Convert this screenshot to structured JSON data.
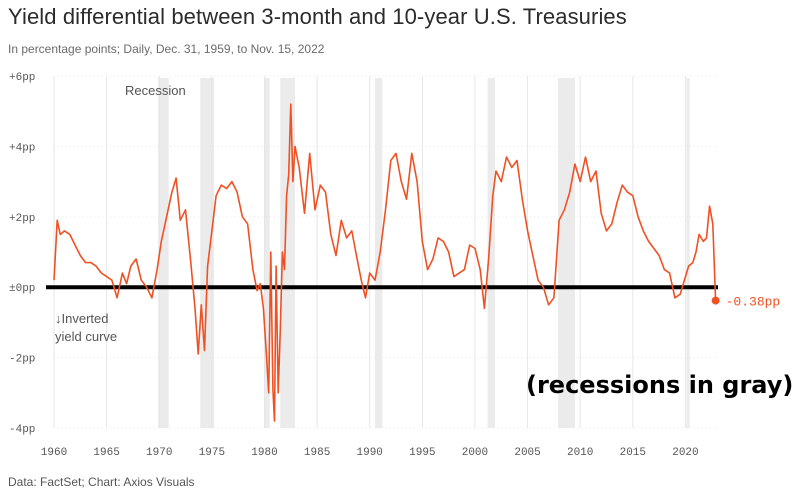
{
  "title": "Yield differential between 3-month and 10-year U.S. Treasuries",
  "subtitle": "In percentage points; Daily, Dec. 31, 1959, to Nov. 15, 2022",
  "source": "Data: FactSet; Chart: Axios Visuals",
  "recession_label": "Recession",
  "inverted_label_line1": "↓Inverted",
  "inverted_label_line2": "yield curve",
  "annotation": "(recessions in gray)",
  "end_value_label": "-0.38pp",
  "colors": {
    "line": "#ef5124",
    "recession": "#ebebeb",
    "zero_line": "#000000",
    "grid": "#e6e6e6"
  },
  "chart_data": {
    "type": "line",
    "title": "Yield differential between 3-month and 10-year U.S. Treasuries",
    "ylabel": "",
    "xlabel": "",
    "xlim": [
      1960,
      2023
    ],
    "ylim": [
      -4,
      6
    ],
    "y_ticks": [
      6,
      4,
      2,
      0,
      -2,
      -4
    ],
    "y_tick_labels": [
      "+6pp",
      "+4pp",
      "+2pp",
      "±0pp",
      "-2pp",
      "-4pp"
    ],
    "x_ticks": [
      1960,
      1965,
      1970,
      1975,
      1980,
      1985,
      1990,
      1995,
      2000,
      2005,
      2010,
      2015,
      2020
    ],
    "x_tick_labels": [
      "1960",
      "1965",
      "1970",
      "1975",
      "1980",
      "1985",
      "1990",
      "1995",
      "2000",
      "2005",
      "2010",
      "2015",
      "2020"
    ],
    "grid": "vertical",
    "recessions": [
      [
        1969.9,
        1970.9
      ],
      [
        1973.9,
        1975.2
      ],
      [
        1980.0,
        1980.5
      ],
      [
        1981.5,
        1982.9
      ],
      [
        1990.5,
        1991.2
      ],
      [
        2001.2,
        2001.9
      ],
      [
        2007.9,
        2009.5
      ],
      [
        2020.1,
        2020.4
      ]
    ],
    "series": [
      {
        "x": [
          1960.0,
          1960.3,
          1960.6,
          1961.0,
          1961.5,
          1962.0,
          1962.5,
          1963.0,
          1963.5,
          1964.0,
          1964.5,
          1965.0,
          1965.5,
          1966.0,
          1966.5,
          1966.9,
          1967.3,
          1967.8,
          1968.3,
          1968.8,
          1969.3,
          1969.8,
          1970.2,
          1970.7,
          1971.2,
          1971.6,
          1972.0,
          1972.5,
          1973.0,
          1973.4,
          1973.7,
          1974.0,
          1974.3,
          1974.6,
          1975.0,
          1975.4,
          1975.9,
          1976.4,
          1976.9,
          1977.4,
          1977.9,
          1978.4,
          1978.9,
          1979.3,
          1979.6,
          1979.9,
          1980.2,
          1980.4,
          1980.6,
          1980.8,
          1980.95,
          1981.1,
          1981.3,
          1981.5,
          1981.7,
          1981.9,
          1982.1,
          1982.3,
          1982.5,
          1982.7,
          1982.9,
          1983.3,
          1983.8,
          1984.3,
          1984.8,
          1985.3,
          1985.8,
          1986.3,
          1986.8,
          1987.3,
          1987.8,
          1988.3,
          1988.8,
          1989.2,
          1989.6,
          1990.0,
          1990.5,
          1991.0,
          1991.5,
          1992.0,
          1992.5,
          1993.0,
          1993.5,
          1994.0,
          1994.5,
          1995.0,
          1995.5,
          1996.0,
          1996.5,
          1997.0,
          1997.5,
          1998.0,
          1998.5,
          1999.0,
          1999.5,
          2000.0,
          2000.5,
          2000.9,
          2001.3,
          2001.7,
          2002.0,
          2002.5,
          2003.0,
          2003.5,
          2004.0,
          2004.5,
          2005.0,
          2005.5,
          2006.0,
          2006.5,
          2007.0,
          2007.5,
          2008.0,
          2008.5,
          2009.0,
          2009.5,
          2010.0,
          2010.5,
          2011.0,
          2011.5,
          2012.0,
          2012.5,
          2013.0,
          2013.5,
          2014.0,
          2014.5,
          2015.0,
          2015.5,
          2016.0,
          2016.5,
          2017.0,
          2017.5,
          2018.0,
          2018.5,
          2019.0,
          2019.5,
          2019.9,
          2020.3,
          2020.7,
          2021.0,
          2021.3,
          2021.7,
          2022.0,
          2022.3,
          2022.6,
          2022.87
        ],
        "values": [
          0.2,
          1.9,
          1.5,
          1.6,
          1.5,
          1.2,
          0.9,
          0.7,
          0.7,
          0.6,
          0.4,
          0.3,
          0.2,
          -0.3,
          0.4,
          0.1,
          0.6,
          0.8,
          0.2,
          0.0,
          -0.3,
          0.5,
          1.3,
          2.0,
          2.7,
          3.1,
          1.9,
          2.2,
          0.7,
          -0.6,
          -1.9,
          -0.5,
          -1.8,
          0.6,
          1.6,
          2.6,
          2.9,
          2.8,
          3.0,
          2.7,
          2.0,
          1.8,
          0.5,
          -0.1,
          0.1,
          -0.6,
          -2.0,
          -3.0,
          1.0,
          -2.9,
          -3.8,
          0.6,
          -3.0,
          -1.2,
          1.0,
          0.5,
          2.6,
          3.2,
          5.2,
          3.0,
          4.0,
          3.4,
          2.1,
          3.8,
          2.2,
          2.9,
          2.7,
          1.5,
          0.9,
          1.9,
          1.4,
          1.6,
          0.8,
          0.2,
          -0.3,
          0.4,
          0.2,
          1.0,
          2.2,
          3.6,
          3.8,
          3.0,
          2.5,
          3.8,
          3.0,
          1.3,
          0.5,
          0.8,
          1.4,
          1.3,
          1.0,
          0.3,
          0.4,
          0.5,
          1.2,
          1.1,
          0.5,
          -0.6,
          0.8,
          2.6,
          3.3,
          3.0,
          3.7,
          3.4,
          3.6,
          2.5,
          1.6,
          0.9,
          0.2,
          0.0,
          -0.5,
          -0.3,
          1.9,
          2.2,
          2.7,
          3.5,
          3.0,
          3.7,
          3.0,
          3.3,
          2.1,
          1.6,
          1.8,
          2.4,
          2.9,
          2.7,
          2.6,
          2.0,
          1.6,
          1.3,
          1.1,
          0.9,
          0.5,
          0.4,
          -0.3,
          -0.2,
          0.2,
          0.6,
          0.7,
          1.0,
          1.5,
          1.3,
          1.4,
          2.3,
          1.8,
          -0.38
        ]
      }
    ],
    "end_value": -0.38
  }
}
